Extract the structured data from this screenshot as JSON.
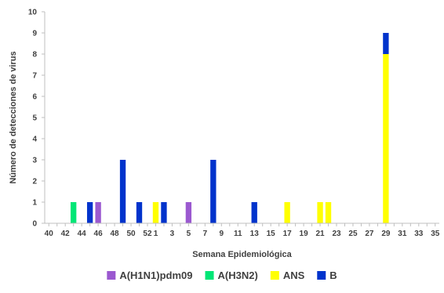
{
  "chart_data": {
    "type": "bar",
    "stacked": true,
    "title": "",
    "xlabel": "Semana Epidemiológica",
    "ylabel": "Número de detecciones de virus",
    "ylim": [
      0,
      10
    ],
    "yticks": [
      0,
      1,
      2,
      3,
      4,
      5,
      6,
      7,
      8,
      9,
      10
    ],
    "categories": [
      "40",
      "41",
      "42",
      "43",
      "44",
      "45",
      "46",
      "47",
      "48",
      "49",
      "50",
      "51",
      "52",
      "1",
      "2",
      "3",
      "4",
      "5",
      "6",
      "7",
      "8",
      "9",
      "10",
      "11",
      "12",
      "13",
      "14",
      "15",
      "16",
      "17",
      "18",
      "19",
      "20",
      "21",
      "22",
      "23",
      "24",
      "25",
      "26",
      "27",
      "28",
      "29",
      "30",
      "31",
      "32",
      "33",
      "34",
      "35"
    ],
    "x_tick_labels": [
      "40",
      "42",
      "44",
      "46",
      "48",
      "50",
      "52",
      "1",
      "3",
      "5",
      "7",
      "9",
      "11",
      "13",
      "15",
      "17",
      "19",
      "21",
      "23",
      "25",
      "27",
      "29",
      "31",
      "33",
      "35"
    ],
    "series": [
      {
        "name": "A(H1N1)pdm09",
        "color": "#9B59D0",
        "values": [
          0,
          0,
          0,
          0,
          0,
          0,
          1,
          0,
          0,
          0,
          0,
          0,
          0,
          0,
          0,
          0,
          0,
          1,
          0,
          0,
          0,
          0,
          0,
          0,
          0,
          0,
          0,
          0,
          0,
          0,
          0,
          0,
          0,
          0,
          0,
          0,
          0,
          0,
          0,
          0,
          0,
          0,
          0,
          0,
          0,
          0,
          0,
          0
        ]
      },
      {
        "name": "A(H3N2)",
        "color": "#00E676",
        "values": [
          0,
          0,
          0,
          1,
          0,
          0,
          0,
          0,
          0,
          0,
          0,
          0,
          0,
          0,
          0,
          0,
          0,
          0,
          0,
          0,
          0,
          0,
          0,
          0,
          0,
          0,
          0,
          0,
          0,
          0,
          0,
          0,
          0,
          0,
          0,
          0,
          0,
          0,
          0,
          0,
          0,
          0,
          0,
          0,
          0,
          0,
          0,
          0
        ]
      },
      {
        "name": "ANS",
        "color": "#FFFF00",
        "values": [
          0,
          0,
          0,
          0,
          0,
          0,
          0,
          0,
          0,
          0,
          0,
          0,
          0,
          1,
          0,
          0,
          0,
          0,
          0,
          0,
          0,
          0,
          0,
          0,
          0,
          0,
          0,
          0,
          0,
          1,
          0,
          0,
          0,
          1,
          1,
          0,
          0,
          0,
          0,
          0,
          0,
          8,
          0,
          0,
          0,
          0,
          0,
          0
        ]
      },
      {
        "name": "B",
        "color": "#0033CC",
        "values": [
          0,
          0,
          0,
          0,
          0,
          1,
          0,
          0,
          0,
          3,
          0,
          1,
          0,
          0,
          1,
          0,
          0,
          0,
          0,
          0,
          3,
          0,
          0,
          0,
          0,
          1,
          0,
          0,
          0,
          0,
          0,
          0,
          0,
          0,
          0,
          0,
          0,
          0,
          0,
          0,
          0,
          1,
          0,
          0,
          0,
          0,
          0,
          0
        ]
      }
    ],
    "grid": false,
    "legend_position": "bottom"
  }
}
